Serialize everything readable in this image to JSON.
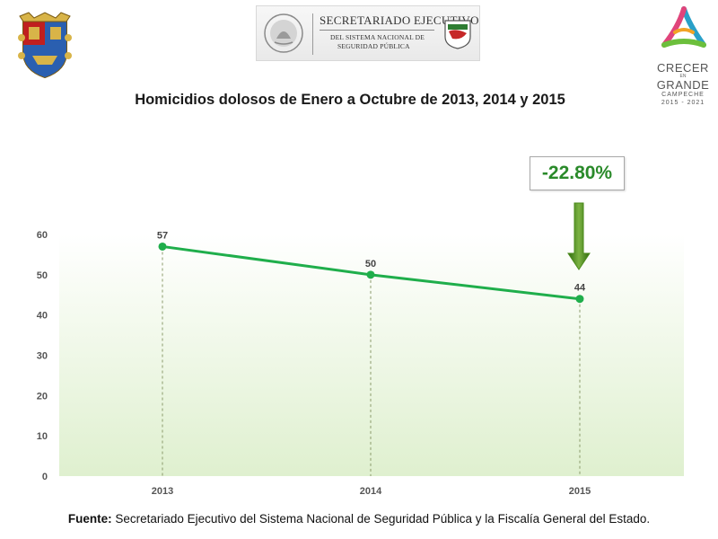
{
  "header": {
    "sesnsp": {
      "line1": "SECRETARIADO EJECUTIVO",
      "line2": "DEL SISTEMA NACIONAL DE",
      "line3": "SEGURIDAD PÚBLICA"
    },
    "brand": {
      "word1": "CRECER",
      "word2": "EN",
      "word3": "GRANDE",
      "word4": "CAMPECHE",
      "word5": "2015 - 2021"
    }
  },
  "change_label": "-22.80%",
  "footer": {
    "label": "Fuente:",
    "text": " Secretariado Ejecutivo del Sistema Nacional de Seguridad Pública y la Fiscalía General del Estado."
  },
  "colors": {
    "line": "#1fae4b",
    "change_text": "#2a8a2a",
    "arrow": "#4a8a1a",
    "plot_bg_top": "#ffffff",
    "plot_bg_bottom": "#dff0cf"
  },
  "chart_data": {
    "type": "line",
    "title": "Homicidios dolosos de Enero a Octubre de 2013, 2014 y 2015",
    "categories": [
      "2013",
      "2014",
      "2015"
    ],
    "series": [
      {
        "values": [
          57,
          50,
          44
        ]
      }
    ],
    "data_labels": [
      "57",
      "50",
      "44"
    ],
    "ylim": [
      0,
      60
    ],
    "yticks": [
      0,
      10,
      20,
      30,
      40,
      50,
      60
    ],
    "xlabel": "",
    "ylabel": "",
    "grid": false,
    "legend": "none"
  }
}
